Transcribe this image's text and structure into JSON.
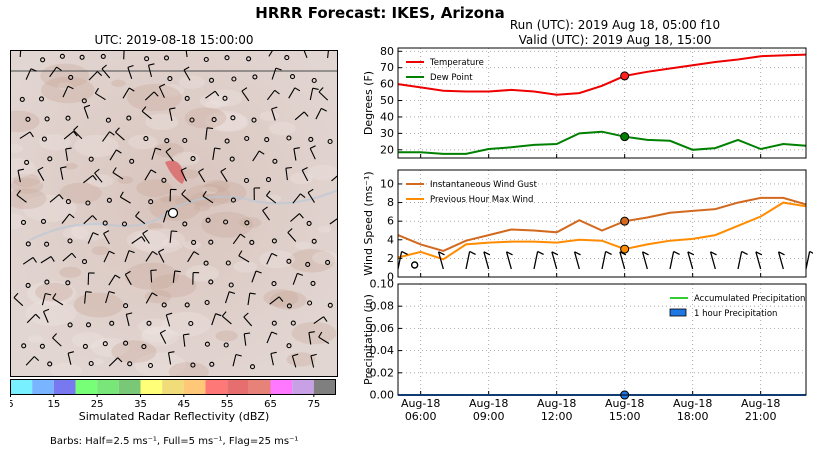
{
  "figure": {
    "title": "HRRR Forecast: IKES, Arizona",
    "map_title": "UTC: 2019-08-18 15:00:00",
    "run_line": "Run (UTC): 2019 Aug 18, 05:00 f10",
    "valid_line": "Valid (UTC): 2019 Aug 18, 15:00",
    "colorbar_label": "Simulated Radar Reflectivity (dBZ)",
    "barbs_note": "Barbs: Half=2.5 ms⁻¹, Full=5 ms⁻¹, Flag=25 ms⁻¹"
  },
  "colorbar": {
    "colors": [
      "#78f0ff",
      "#78b4ff",
      "#7878f0",
      "#78ff78",
      "#78e678",
      "#78c878",
      "#ffff78",
      "#f0dc78",
      "#ffc878",
      "#ff7878",
      "#e66e6e",
      "#e68278",
      "#ff78ff",
      "#c8a0e6",
      "#7f7f7f"
    ],
    "ticks": [
      "5",
      "15",
      "25",
      "35",
      "45",
      "55",
      "65",
      "75"
    ]
  },
  "x_ticks": [
    {
      "line1": "Aug-18",
      "line2": "06:00"
    },
    {
      "line1": "Aug-18",
      "line2": "09:00"
    },
    {
      "line1": "Aug-18",
      "line2": "12:00"
    },
    {
      "line1": "Aug-18",
      "line2": "15:00"
    },
    {
      "line1": "Aug-18",
      "line2": "18:00"
    },
    {
      "line1": "Aug-18",
      "line2": "21:00"
    }
  ],
  "chart_data": [
    {
      "type": "line",
      "xlabel": "",
      "ylabel": "Degrees (F)",
      "x_hours": [
        5,
        6,
        7,
        8,
        9,
        10,
        11,
        12,
        13,
        14,
        15,
        16,
        17,
        18,
        19,
        20,
        21,
        22,
        23
      ],
      "ylim": [
        15,
        82
      ],
      "yticks": [
        20,
        30,
        40,
        50,
        60,
        70,
        80
      ],
      "grid": true,
      "legend": "top-left",
      "highlight_hour": 15,
      "series": [
        {
          "name": "Temperature",
          "color": "#ee0000",
          "values": [
            60,
            58,
            56,
            55.5,
            55.5,
            56.5,
            55.5,
            53.5,
            54.5,
            59,
            65,
            67.5,
            69.5,
            71.5,
            73.5,
            75,
            77,
            77.5,
            78
          ]
        },
        {
          "name": "Dew Point",
          "color": "#008000",
          "values": [
            18.5,
            18.5,
            17.5,
            17.5,
            20.5,
            21.5,
            23,
            23.5,
            30,
            31,
            28,
            26,
            25.5,
            20,
            21,
            26,
            20.5,
            23.5,
            22.5
          ]
        }
      ]
    },
    {
      "type": "line",
      "xlabel": "",
      "ylabel": "Wind Speed (ms⁻¹)",
      "x_hours": [
        5,
        6,
        7,
        8,
        9,
        10,
        11,
        12,
        13,
        14,
        15,
        16,
        17,
        18,
        19,
        20,
        21,
        22,
        23
      ],
      "ylim": [
        0,
        11.5
      ],
      "yticks": [
        0,
        2,
        4,
        6,
        8,
        10
      ],
      "grid": true,
      "legend": "top-left",
      "highlight_hour": 15,
      "series": [
        {
          "name": "Instantaneous Wind Gust",
          "color": "#d2691e",
          "values": [
            4.5,
            3.5,
            2.8,
            3.9,
            4.5,
            5.1,
            5,
            4.8,
            6.1,
            5,
            6,
            6.4,
            6.9,
            7.1,
            7.3,
            8,
            8.5,
            8.5,
            7.8
          ]
        },
        {
          "name": "Previous Hour Max Wind",
          "color": "#ff8c00",
          "values": [
            2.1,
            2.7,
            1.9,
            3.5,
            3.7,
            3.8,
            3.8,
            3.7,
            4,
            3.9,
            3,
            3.5,
            3.9,
            4.1,
            4.5,
            5.5,
            6.5,
            8,
            7.6
          ]
        }
      ]
    },
    {
      "type": "line",
      "xlabel": "",
      "ylabel": "Precipitation (in)",
      "x_hours": [
        5,
        6,
        7,
        8,
        9,
        10,
        11,
        12,
        13,
        14,
        15,
        16,
        17,
        18,
        19,
        20,
        21,
        22,
        23
      ],
      "ylim": [
        0,
        0.1
      ],
      "yticks": [
        "0.00",
        "0.02",
        "0.04",
        "0.06",
        "0.08",
        "0.10"
      ],
      "grid": true,
      "legend": "top-right",
      "highlight_hour": 15,
      "series": [
        {
          "name": "Accumulated Precipitation",
          "color": "#33cc33",
          "values": [
            0,
            0,
            0,
            0,
            0,
            0,
            0,
            0,
            0,
            0,
            0,
            0,
            0,
            0,
            0,
            0,
            0,
            0,
            0
          ]
        },
        {
          "name": "1 hour Precipitation",
          "color": "#1f77e4",
          "values": [
            0,
            0,
            0,
            0,
            0,
            0,
            0,
            0,
            0,
            0,
            0,
            0,
            0,
            0,
            0,
            0,
            0,
            0,
            0
          ]
        }
      ]
    }
  ]
}
